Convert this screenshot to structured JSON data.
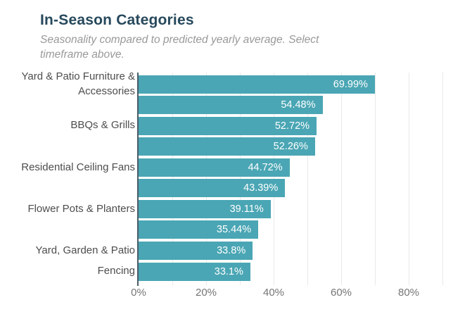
{
  "header": {
    "title": "In-Season Categories",
    "subtitle": "Seasonality compared to predicted yearly average. Select timeframe above."
  },
  "colors": {
    "bar": "#4aa6b4",
    "title_text": "#27495c",
    "subtitle_text": "#999999",
    "category_label_text": "#4d4d4d",
    "value_label_text": "#ffffff",
    "tick_label_text": "#757575",
    "axis_line": "#4a5d68",
    "grid_line": "#e9e9e9",
    "background": "#ffffff"
  },
  "chart_data": {
    "type": "bar",
    "orientation": "horizontal",
    "title": "In-Season Categories",
    "subtitle": "Seasonality compared to predicted yearly average. Select timeframe above.",
    "categories": [
      "Yard & Patio Furniture & Accessories",
      "",
      "BBQs & Grills",
      "",
      "Residential Ceiling Fans",
      "",
      "Flower Pots & Planters",
      "",
      "Yard, Garden & Patio",
      "Fencing"
    ],
    "values": [
      69.99,
      54.48,
      52.72,
      52.26,
      44.72,
      43.39,
      39.11,
      35.44,
      33.8,
      33.1
    ],
    "value_labels": [
      "69.99%",
      "54.48%",
      "52.72%",
      "52.26%",
      "44.72%",
      "43.39%",
      "39.11%",
      "35.44%",
      "33.8%",
      "33.1%"
    ],
    "xlabel": "",
    "ylabel": "",
    "x_ticks": [
      {
        "label": "0%",
        "value": 0
      },
      {
        "label": "20%",
        "value": 20
      },
      {
        "label": "40%",
        "value": 40
      },
      {
        "label": "60%",
        "value": 60
      },
      {
        "label": "80%",
        "value": 80
      }
    ],
    "xlim": [
      0,
      91.6
    ],
    "grid": "vertical gridlines every 10%",
    "gridline_values": [
      10,
      20,
      30,
      40,
      50,
      60,
      70,
      80,
      90
    ],
    "legend": "none",
    "value_label_position": "inside-end"
  }
}
